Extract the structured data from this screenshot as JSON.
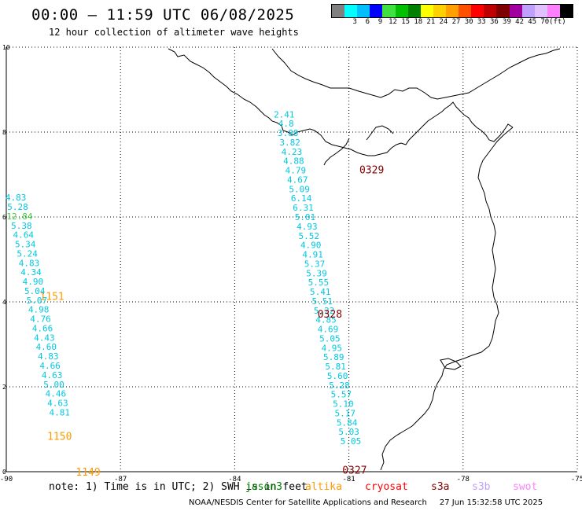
{
  "header": {
    "title": "00:00 – 11:59 UTC 06/08/2025",
    "subtitle": "12 hour collection of altimeter wave heights"
  },
  "legend": {
    "colors": [
      "#808080",
      "#00ffff",
      "#00bfff",
      "#0000ff",
      "#40e040",
      "#00c000",
      "#008000",
      "#ffff00",
      "#ffd000",
      "#ffa000",
      "#ff5000",
      "#ff0000",
      "#c00000",
      "#800000",
      "#a000a0",
      "#c0a0ff",
      "#e0c0ff",
      "#ff80ff",
      "#000000"
    ],
    "labels": [
      "3",
      "6",
      "9",
      "12",
      "15",
      "18",
      "21",
      "24",
      "27",
      "30",
      "33",
      "36",
      "39",
      "42",
      "45",
      "70",
      "(ft)"
    ]
  },
  "map": {
    "lon_range": [
      -90,
      -75
    ],
    "lat_range": [
      0,
      10
    ],
    "x_ticks": [
      "-90",
      "-87",
      "-84",
      "-81",
      "-78",
      "-75"
    ],
    "y_ticks": [
      "0",
      "2",
      "4",
      "6",
      "8",
      "10"
    ],
    "colors": {
      "cyan": "#00c8e0",
      "green": "#40d040",
      "orange": "#ff9900",
      "darkred": "#800000",
      "coast": "#000000",
      "grid": "#000000"
    }
  },
  "chart_data": {
    "type": "scatter",
    "tracks": [
      {
        "pass_label": "0329",
        "label_lon": -80.4,
        "label_lat": 7.1,
        "points": [
          {
            "lon": -82.7,
            "lat": 8.42,
            "swh": "2.41",
            "color": "cyan"
          },
          {
            "lon": -82.65,
            "lat": 8.2,
            "swh": "4.8",
            "color": "cyan"
          },
          {
            "lon": -82.6,
            "lat": 7.98,
            "swh": "3.88",
            "color": "cyan"
          },
          {
            "lon": -82.55,
            "lat": 7.76,
            "swh": "3.82",
            "color": "cyan"
          },
          {
            "lon": -82.5,
            "lat": 7.54,
            "swh": "4.23",
            "color": "cyan"
          },
          {
            "lon": -82.45,
            "lat": 7.32,
            "swh": "4.88",
            "color": "cyan"
          },
          {
            "lon": -82.4,
            "lat": 7.1,
            "swh": "4.79",
            "color": "cyan"
          },
          {
            "lon": -82.35,
            "lat": 6.88,
            "swh": "4.67",
            "color": "cyan"
          },
          {
            "lon": -82.3,
            "lat": 6.66,
            "swh": "5.09",
            "color": "cyan"
          },
          {
            "lon": -82.25,
            "lat": 6.44,
            "swh": "6.14",
            "color": "cyan"
          },
          {
            "lon": -82.2,
            "lat": 6.22,
            "swh": "6.31",
            "color": "cyan"
          },
          {
            "lon": -82.15,
            "lat": 6.0,
            "swh": "5.01",
            "color": "cyan"
          },
          {
            "lon": -82.1,
            "lat": 5.78,
            "swh": "4.93",
            "color": "cyan"
          },
          {
            "lon": -82.05,
            "lat": 5.56,
            "swh": "5.52",
            "color": "cyan"
          },
          {
            "lon": -82.0,
            "lat": 5.34,
            "swh": "4.90",
            "color": "cyan"
          },
          {
            "lon": -81.95,
            "lat": 5.12,
            "swh": "4.91",
            "color": "cyan"
          },
          {
            "lon": -81.9,
            "lat": 4.9,
            "swh": "5.37",
            "color": "cyan"
          },
          {
            "lon": -81.85,
            "lat": 4.68,
            "swh": "5.39",
            "color": "cyan"
          },
          {
            "lon": -81.8,
            "lat": 4.46,
            "swh": "5.55",
            "color": "cyan"
          },
          {
            "lon": -81.75,
            "lat": 4.24,
            "swh": "5.41",
            "color": "cyan"
          }
        ]
      },
      {
        "pass_label": "0328",
        "label_lon": -81.5,
        "label_lat": 3.7,
        "points": [
          {
            "lon": -81.7,
            "lat": 4.02,
            "swh": "5.51",
            "color": "cyan"
          },
          {
            "lon": -81.65,
            "lat": 3.8,
            "swh": "5.22",
            "color": "cyan"
          },
          {
            "lon": -81.6,
            "lat": 3.58,
            "swh": "4.85",
            "color": "cyan"
          },
          {
            "lon": -81.55,
            "lat": 3.36,
            "swh": "4.69",
            "color": "cyan"
          },
          {
            "lon": -81.5,
            "lat": 3.14,
            "swh": "5.05",
            "color": "cyan"
          },
          {
            "lon": -81.45,
            "lat": 2.92,
            "swh": "4.95",
            "color": "cyan"
          },
          {
            "lon": -81.4,
            "lat": 2.7,
            "swh": "5.89",
            "color": "cyan"
          },
          {
            "lon": -81.35,
            "lat": 2.48,
            "swh": "5.81",
            "color": "cyan"
          }
        ]
      },
      {
        "pass_label": "0327",
        "label_lon": -80.85,
        "label_lat": 0.03,
        "points": [
          {
            "lon": -81.3,
            "lat": 2.26,
            "swh": "5.60",
            "color": "cyan"
          },
          {
            "lon": -81.25,
            "lat": 2.04,
            "swh": "5.28",
            "color": "cyan"
          },
          {
            "lon": -81.2,
            "lat": 1.82,
            "swh": "5.57",
            "color": "cyan"
          },
          {
            "lon": -81.15,
            "lat": 1.6,
            "swh": "5.10",
            "color": "cyan"
          },
          {
            "lon": -81.1,
            "lat": 1.38,
            "swh": "5.17",
            "color": "cyan"
          },
          {
            "lon": -81.05,
            "lat": 1.16,
            "swh": "5.84",
            "color": "cyan"
          },
          {
            "lon": -81.0,
            "lat": 0.94,
            "swh": "5.03",
            "color": "cyan"
          },
          {
            "lon": -80.95,
            "lat": 0.72,
            "swh": "5.05",
            "color": "cyan"
          }
        ]
      },
      {
        "pass_label": "1151",
        "label_lon": -88.8,
        "label_lat": 4.12,
        "points": [
          {
            "lon": -89.75,
            "lat": 6.46,
            "swh": "4.83",
            "color": "cyan"
          },
          {
            "lon": -89.7,
            "lat": 6.24,
            "swh": "5.28",
            "color": "cyan"
          },
          {
            "lon": -89.65,
            "lat": 6.02,
            "swh": "12.84",
            "color": "green"
          },
          {
            "lon": -89.6,
            "lat": 5.8,
            "swh": "5.38",
            "color": "cyan"
          },
          {
            "lon": -89.55,
            "lat": 5.58,
            "swh": "4.64",
            "color": "cyan"
          },
          {
            "lon": -89.5,
            "lat": 5.36,
            "swh": "5.34",
            "color": "cyan"
          },
          {
            "lon": -89.45,
            "lat": 5.14,
            "swh": "5.24",
            "color": "cyan"
          }
        ]
      },
      {
        "pass_label": "1150",
        "label_lon": -88.6,
        "label_lat": 0.82,
        "points": [
          {
            "lon": -89.4,
            "lat": 4.92,
            "swh": "4.83",
            "color": "cyan"
          },
          {
            "lon": -89.35,
            "lat": 4.7,
            "swh": "4.34",
            "color": "cyan"
          },
          {
            "lon": -89.3,
            "lat": 4.48,
            "swh": "4.90",
            "color": "cyan"
          },
          {
            "lon": -89.25,
            "lat": 4.26,
            "swh": "5.04",
            "color": "cyan"
          },
          {
            "lon": -89.2,
            "lat": 4.04,
            "swh": "5.07",
            "color": "cyan"
          },
          {
            "lon": -89.15,
            "lat": 3.82,
            "swh": "4.98",
            "color": "cyan"
          },
          {
            "lon": -89.1,
            "lat": 3.6,
            "swh": "4.76",
            "color": "cyan"
          },
          {
            "lon": -89.05,
            "lat": 3.38,
            "swh": "4.66",
            "color": "cyan"
          },
          {
            "lon": -89.0,
            "lat": 3.16,
            "swh": "4.43",
            "color": "cyan"
          },
          {
            "lon": -88.95,
            "lat": 2.94,
            "swh": "4.60",
            "color": "cyan"
          },
          {
            "lon": -88.9,
            "lat": 2.72,
            "swh": "4.83",
            "color": "cyan"
          },
          {
            "lon": -88.85,
            "lat": 2.5,
            "swh": "4.66",
            "color": "cyan"
          },
          {
            "lon": -88.8,
            "lat": 2.28,
            "swh": "4.63",
            "color": "cyan"
          },
          {
            "lon": -88.75,
            "lat": 2.06,
            "swh": "5.00",
            "color": "cyan"
          }
        ]
      },
      {
        "pass_label": "1149",
        "label_lon": -87.85,
        "label_lat": -0.02,
        "points": [
          {
            "lon": -88.7,
            "lat": 1.84,
            "swh": "4.46",
            "color": "cyan"
          },
          {
            "lon": -88.65,
            "lat": 1.62,
            "swh": "4.63",
            "color": "cyan"
          },
          {
            "lon": -88.6,
            "lat": 1.4,
            "swh": "4.81",
            "color": "cyan"
          }
        ]
      }
    ]
  },
  "footer": {
    "note": "note: 1) Time is in UTC; 2) SWH is in feet",
    "satellites": [
      {
        "name": "jason3",
        "color": "#008000"
      },
      {
        "name": "altika",
        "color": "#ff9900"
      },
      {
        "name": "cryosat",
        "color": "#ff0000"
      },
      {
        "name": "s3a",
        "color": "#800000"
      },
      {
        "name": "s3b",
        "color": "#c0a0ff"
      },
      {
        "name": "swot",
        "color": "#ff80ff"
      }
    ],
    "credit": "NOAA/NESDIS Center for Satellite Applications and Research",
    "timestamp": "27 Jun 15:32:58 UTC 2025"
  }
}
